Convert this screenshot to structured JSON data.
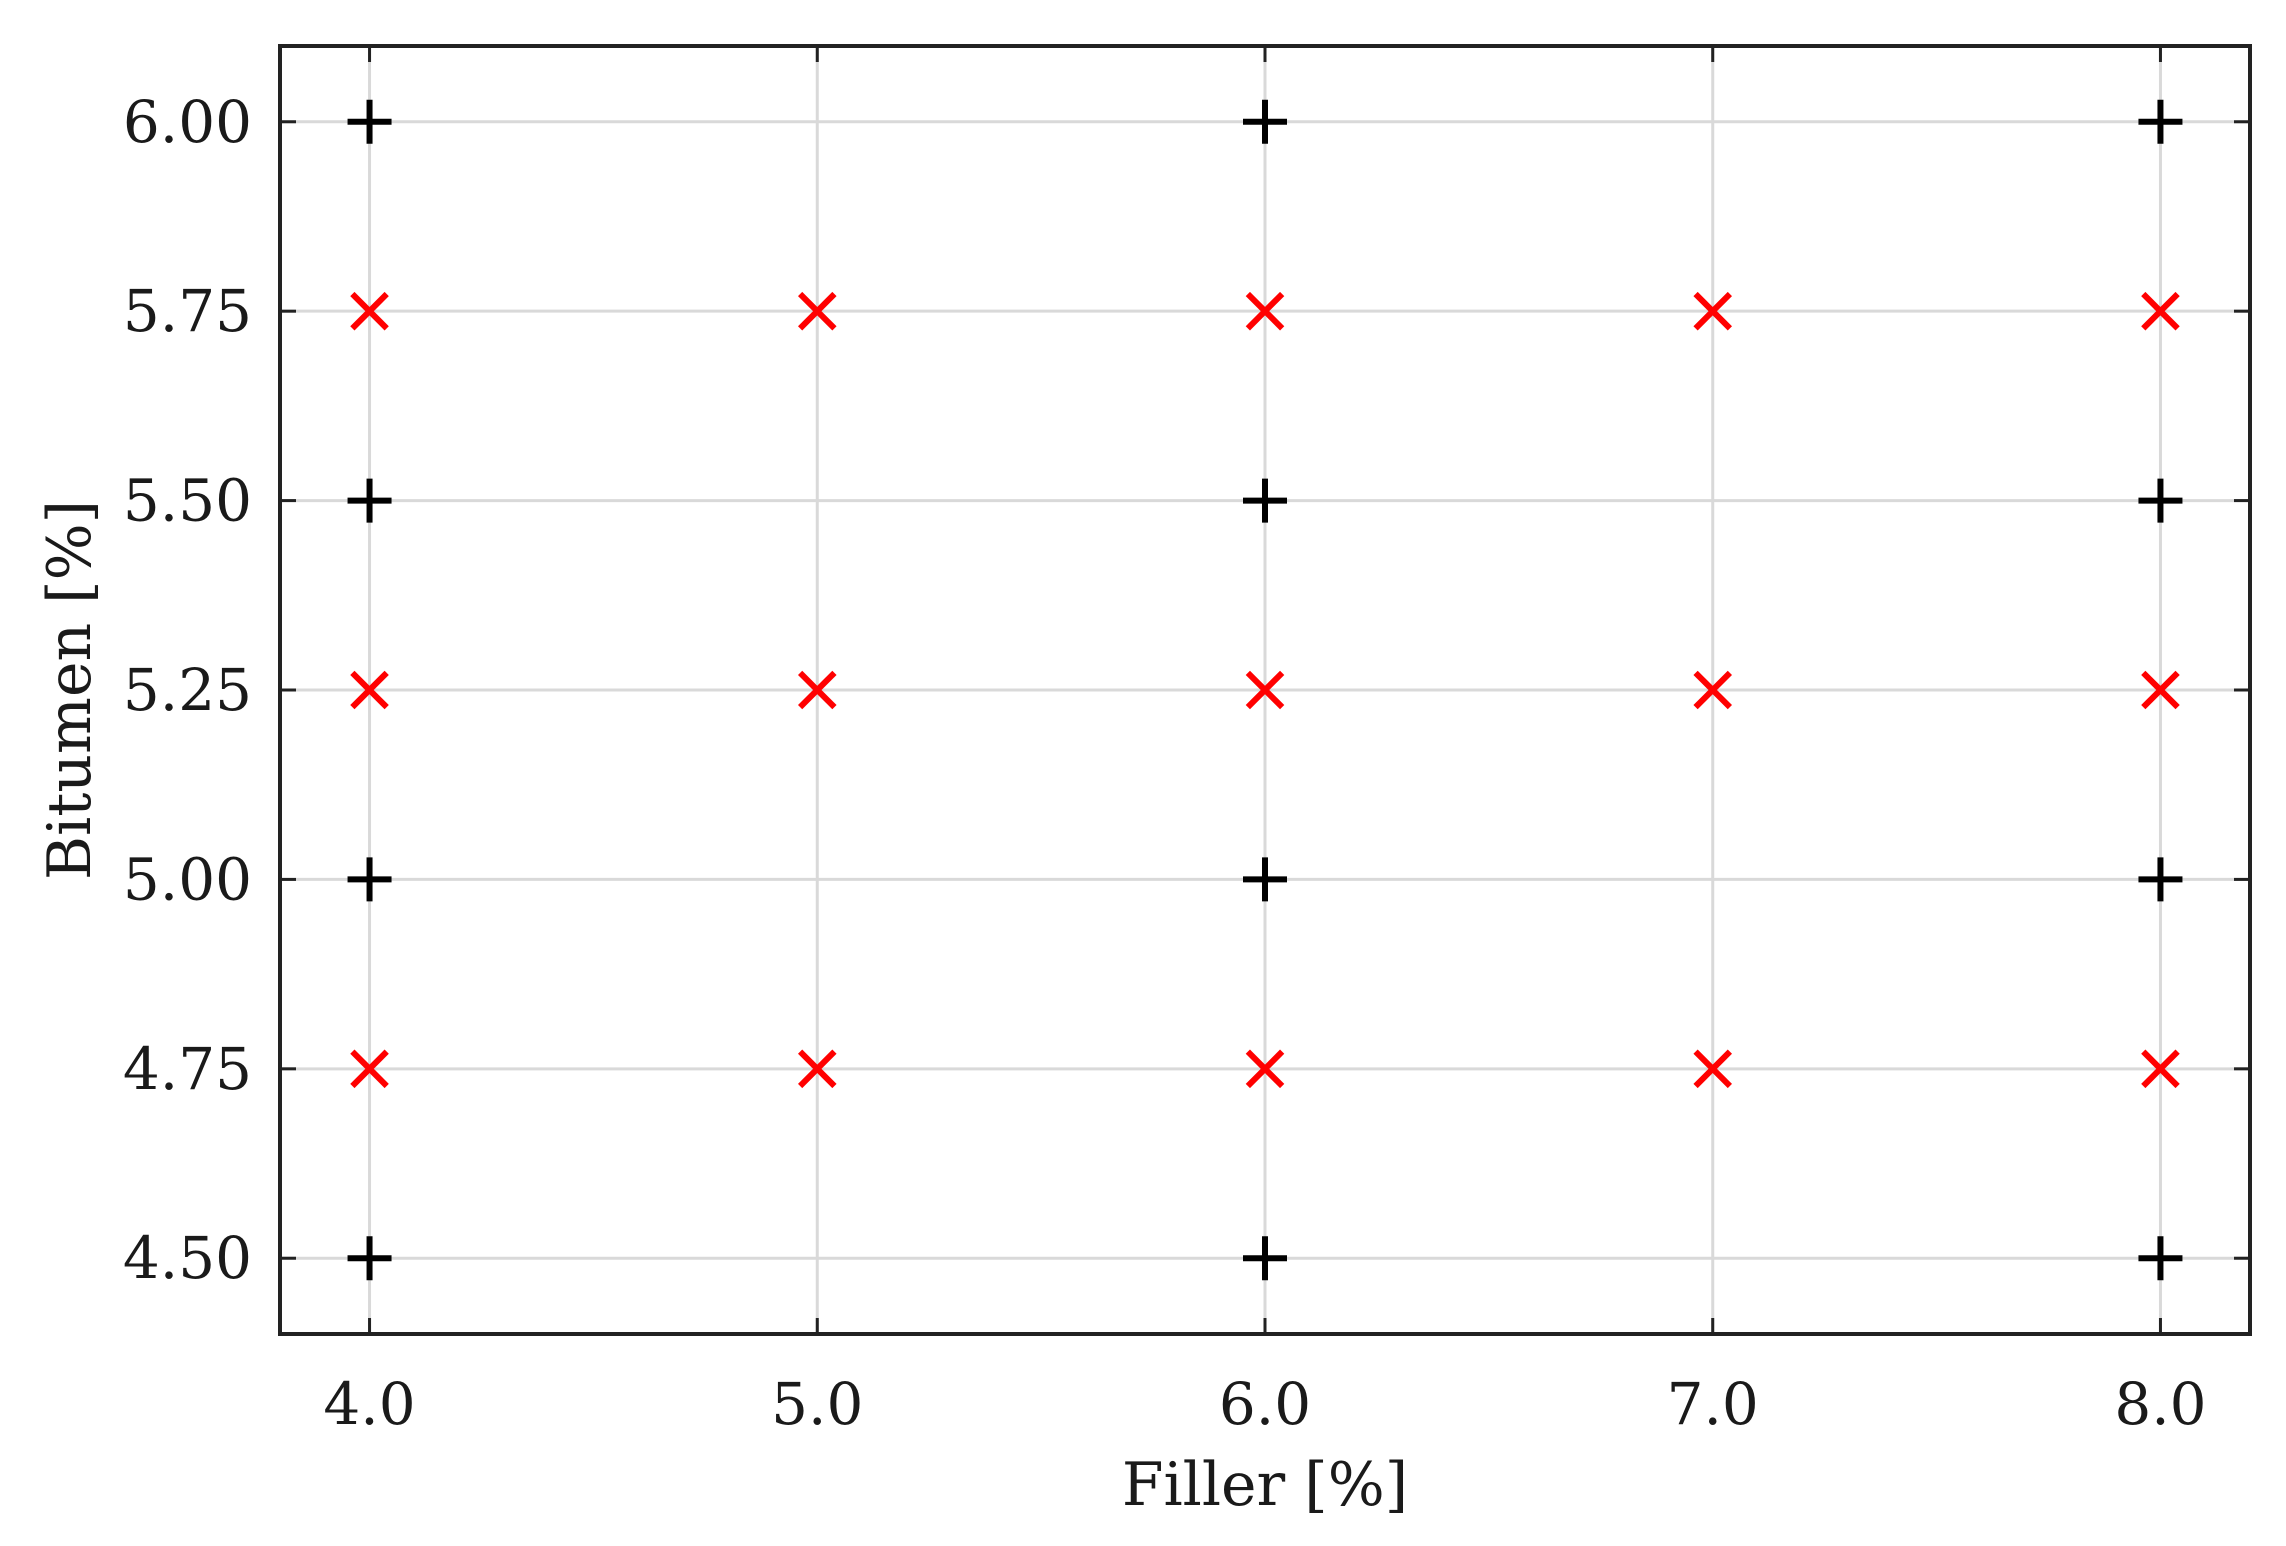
{
  "chart_data": {
    "type": "scatter",
    "title": "",
    "xlabel": "Filler [%]",
    "ylabel": "Bitumen [%]",
    "xlim": [
      3.8,
      8.2
    ],
    "ylim": [
      4.4,
      6.1
    ],
    "xticks": [
      4.0,
      5.0,
      6.0,
      7.0,
      8.0
    ],
    "xtick_labels": [
      "4.0",
      "5.0",
      "6.0",
      "7.0",
      "8.0"
    ],
    "yticks": [
      4.5,
      4.75,
      5.0,
      5.25,
      5.5,
      5.75,
      6.0
    ],
    "ytick_labels": [
      "4.50",
      "4.75",
      "5.00",
      "5.25",
      "5.50",
      "5.75",
      "6.00"
    ],
    "grid": true,
    "legend": "none",
    "series": [
      {
        "marker": "plus",
        "color": "#000000",
        "points": [
          [
            4.0,
            4.5
          ],
          [
            6.0,
            4.5
          ],
          [
            8.0,
            4.5
          ],
          [
            4.0,
            5.0
          ],
          [
            6.0,
            5.0
          ],
          [
            8.0,
            5.0
          ],
          [
            4.0,
            5.5
          ],
          [
            6.0,
            5.5
          ],
          [
            8.0,
            5.5
          ],
          [
            4.0,
            6.0
          ],
          [
            6.0,
            6.0
          ],
          [
            8.0,
            6.0
          ]
        ]
      },
      {
        "marker": "x",
        "color": "#ff0000",
        "points": [
          [
            4.0,
            4.75
          ],
          [
            5.0,
            4.75
          ],
          [
            6.0,
            4.75
          ],
          [
            7.0,
            4.75
          ],
          [
            8.0,
            4.75
          ],
          [
            4.0,
            5.25
          ],
          [
            5.0,
            5.25
          ],
          [
            6.0,
            5.25
          ],
          [
            7.0,
            5.25
          ],
          [
            8.0,
            5.25
          ],
          [
            4.0,
            5.75
          ],
          [
            5.0,
            5.75
          ],
          [
            6.0,
            5.75
          ],
          [
            7.0,
            5.75
          ],
          [
            8.0,
            5.75
          ]
        ]
      }
    ]
  }
}
